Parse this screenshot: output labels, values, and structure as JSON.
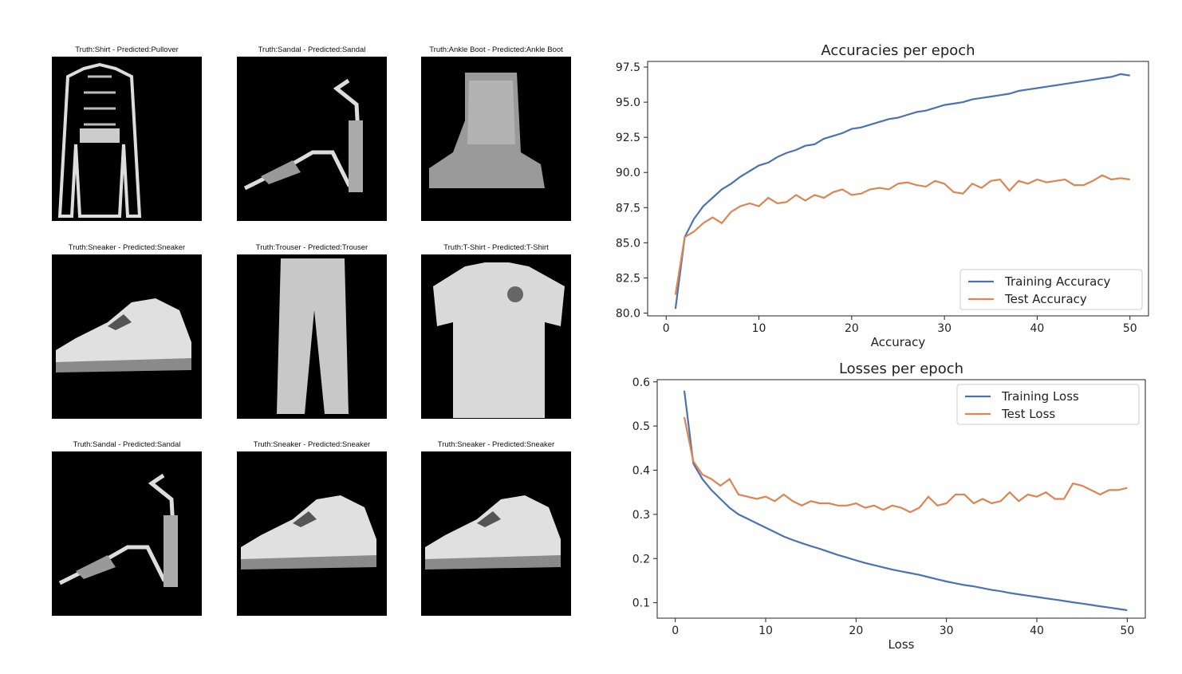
{
  "samples": [
    {
      "title": "Truth:Shirt - Predicted:Pullover",
      "icon": "shirt-image"
    },
    {
      "title": "Truth:Sandal - Predicted:Sandal",
      "icon": "sandal-image"
    },
    {
      "title": "Truth:Ankle Boot - Predicted:Ankle Boot",
      "icon": "ankle-boot-image"
    },
    {
      "title": "Truth:Sneaker - Predicted:Sneaker",
      "icon": "sneaker-image"
    },
    {
      "title": "Truth:Trouser - Predicted:Trouser",
      "icon": "trouser-image"
    },
    {
      "title": "Truth:T-Shirt - Predicted:T-Shirt",
      "icon": "tshirt-image"
    },
    {
      "title": "Truth:Sandal - Predicted:Sandal",
      "icon": "sandal-image"
    },
    {
      "title": "Truth:Sneaker - Predicted:Sneaker",
      "icon": "sneaker-image"
    },
    {
      "title": "Truth:Sneaker - Predicted:Sneaker",
      "icon": "sneaker-image"
    }
  ],
  "chart_data": [
    {
      "type": "line",
      "title": "Accuracies per epoch",
      "xlabel": "Accuracy",
      "ylabel": "",
      "xlim": [
        -2,
        52
      ],
      "ylim": [
        79.8,
        97.9
      ],
      "xticks": [
        0,
        10,
        20,
        30,
        40,
        50
      ],
      "yticks": [
        80.0,
        82.5,
        85.0,
        87.5,
        90.0,
        92.5,
        95.0,
        97.5
      ],
      "ytick_labels": [
        "80.0",
        "82.5",
        "85.0",
        "87.5",
        "90.0",
        "92.5",
        "95.0",
        "97.5"
      ],
      "legend": "lower-right",
      "grid": false,
      "x": [
        1,
        2,
        3,
        4,
        5,
        6,
        7,
        8,
        9,
        10,
        11,
        12,
        13,
        14,
        15,
        16,
        17,
        18,
        19,
        20,
        21,
        22,
        23,
        24,
        25,
        26,
        27,
        28,
        29,
        30,
        31,
        32,
        33,
        34,
        35,
        36,
        37,
        38,
        39,
        40,
        41,
        42,
        43,
        44,
        45,
        46,
        47,
        48,
        49,
        50
      ],
      "series": [
        {
          "name": "Training Accuracy",
          "color": "#4c72b0",
          "values": [
            80.3,
            85.4,
            86.7,
            87.6,
            88.2,
            88.8,
            89.2,
            89.7,
            90.1,
            90.5,
            90.7,
            91.1,
            91.4,
            91.6,
            91.9,
            92.0,
            92.4,
            92.6,
            92.8,
            93.1,
            93.2,
            93.4,
            93.6,
            93.8,
            93.9,
            94.1,
            94.3,
            94.4,
            94.6,
            94.8,
            94.9,
            95.0,
            95.2,
            95.3,
            95.4,
            95.5,
            95.6,
            95.8,
            95.9,
            96.0,
            96.1,
            96.2,
            96.3,
            96.4,
            96.5,
            96.6,
            96.7,
            96.8,
            97.0,
            96.9
          ]
        },
        {
          "name": "Test Accuracy",
          "color": "#dd8452",
          "values": [
            81.3,
            85.4,
            85.8,
            86.4,
            86.8,
            86.4,
            87.2,
            87.6,
            87.8,
            87.6,
            88.2,
            87.8,
            87.9,
            88.4,
            88.0,
            88.4,
            88.2,
            88.6,
            88.8,
            88.4,
            88.5,
            88.8,
            88.9,
            88.8,
            89.2,
            89.3,
            89.1,
            89.0,
            89.4,
            89.2,
            88.6,
            88.5,
            89.2,
            88.9,
            89.4,
            89.5,
            88.7,
            89.4,
            89.2,
            89.5,
            89.3,
            89.4,
            89.5,
            89.1,
            89.1,
            89.4,
            89.8,
            89.5,
            89.6,
            89.5
          ]
        }
      ]
    },
    {
      "type": "line",
      "title": "Losses per epoch",
      "xlabel": "Loss",
      "ylabel": "",
      "xlim": [
        -2,
        52
      ],
      "ylim": [
        0.065,
        0.605
      ],
      "xticks": [
        0,
        10,
        20,
        30,
        40,
        50
      ],
      "yticks": [
        0.1,
        0.2,
        0.3,
        0.4,
        0.5,
        0.6
      ],
      "ytick_labels": [
        "0.1",
        "0.2",
        "0.3",
        "0.4",
        "0.5",
        "0.6"
      ],
      "legend": "upper-right",
      "grid": false,
      "x": [
        1,
        2,
        3,
        4,
        5,
        6,
        7,
        8,
        9,
        10,
        11,
        12,
        13,
        14,
        15,
        16,
        17,
        18,
        19,
        20,
        21,
        22,
        23,
        24,
        25,
        26,
        27,
        28,
        29,
        30,
        31,
        32,
        33,
        34,
        35,
        36,
        37,
        38,
        39,
        40,
        41,
        42,
        43,
        44,
        45,
        46,
        47,
        48,
        49,
        50
      ],
      "series": [
        {
          "name": "Training Loss",
          "color": "#4c72b0",
          "values": [
            0.58,
            0.415,
            0.38,
            0.355,
            0.335,
            0.315,
            0.3,
            0.29,
            0.28,
            0.27,
            0.26,
            0.25,
            0.242,
            0.235,
            0.228,
            0.222,
            0.215,
            0.208,
            0.202,
            0.196,
            0.19,
            0.185,
            0.18,
            0.175,
            0.171,
            0.167,
            0.163,
            0.158,
            0.153,
            0.148,
            0.144,
            0.14,
            0.137,
            0.133,
            0.129,
            0.126,
            0.122,
            0.119,
            0.116,
            0.113,
            0.11,
            0.107,
            0.104,
            0.101,
            0.098,
            0.095,
            0.092,
            0.089,
            0.086,
            0.083
          ]
        },
        {
          "name": "Test Loss",
          "color": "#dd8452",
          "values": [
            0.52,
            0.42,
            0.39,
            0.38,
            0.365,
            0.38,
            0.345,
            0.34,
            0.335,
            0.34,
            0.33,
            0.345,
            0.33,
            0.32,
            0.33,
            0.325,
            0.325,
            0.32,
            0.32,
            0.325,
            0.315,
            0.32,
            0.31,
            0.32,
            0.315,
            0.305,
            0.315,
            0.34,
            0.32,
            0.325,
            0.345,
            0.345,
            0.325,
            0.335,
            0.325,
            0.33,
            0.35,
            0.33,
            0.345,
            0.34,
            0.35,
            0.335,
            0.335,
            0.37,
            0.365,
            0.355,
            0.345,
            0.355,
            0.355,
            0.36
          ]
        }
      ]
    }
  ]
}
